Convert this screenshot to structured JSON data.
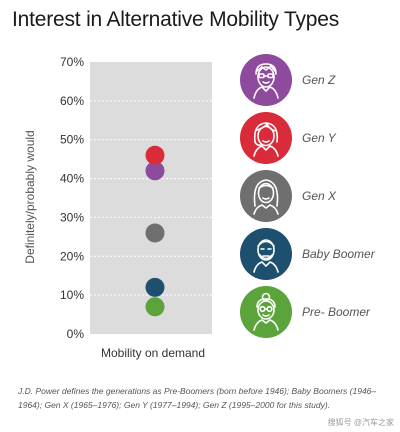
{
  "title": "Interest in Alternative Mobility Types",
  "chart_data": {
    "type": "scatter",
    "title": "Interest in Alternative Mobility Types",
    "xlabel": "Mobility on demand",
    "ylabel": "Definitely/probably would",
    "categories": [
      "Mobility on demand"
    ],
    "ylim": [
      0,
      70
    ],
    "yticks": [
      "0%",
      "10%",
      "20%",
      "30%",
      "40%",
      "50%",
      "60%",
      "70%"
    ],
    "grid": true,
    "legend_position": "right",
    "series": [
      {
        "name": "Gen Z",
        "values": [
          42
        ],
        "color": "#8e4a9c"
      },
      {
        "name": "Gen Y",
        "values": [
          46
        ],
        "color": "#d92b3a"
      },
      {
        "name": "Gen X",
        "values": [
          26
        ],
        "color": "#6f6f6f"
      },
      {
        "name": "Baby Boomer",
        "values": [
          12
        ],
        "color": "#1d4f6e"
      },
      {
        "name": "Pre-Boomer",
        "values": [
          7
        ],
        "color": "#5ba33b"
      }
    ]
  },
  "legend": [
    {
      "label": "Gen Z",
      "icon": "gen-z-avatar-icon",
      "color": "#8e4a9c"
    },
    {
      "label": "Gen Y",
      "icon": "gen-y-avatar-icon",
      "color": "#d92b3a"
    },
    {
      "label": "Gen X",
      "icon": "gen-x-avatar-icon",
      "color": "#6f6f6f"
    },
    {
      "label": "Baby Boomer",
      "icon": "baby-boomer-avatar-icon",
      "color": "#1d4f6e"
    },
    {
      "label": "Pre- Boomer",
      "icon": "pre-boomer-avatar-icon",
      "color": "#5ba33b"
    }
  ],
  "footnote": "J.D. Power defines the generations as Pre-Boomers (born before 1946); Baby Boomers (1946–1964); Gen X (1965–1976); Gen Y (1977–1994); Gen Z (1995–2000 for this study).",
  "watermark": "搜狐号 @汽车之家"
}
